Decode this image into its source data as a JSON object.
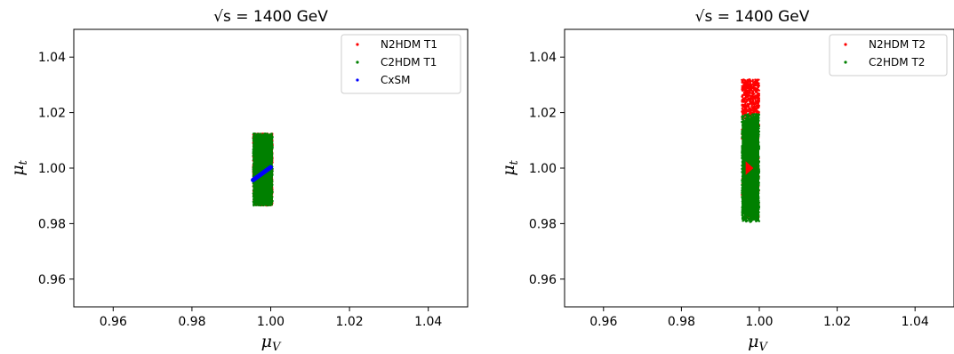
{
  "chart_data": [
    {
      "type": "scatter",
      "title": "√s = 1400 GeV",
      "xlabel": "μV",
      "ylabel": "μt",
      "xlim": [
        0.95,
        1.05
      ],
      "ylim": [
        0.95,
        1.05
      ],
      "xticks": [
        "0.96",
        "0.98",
        "1.00",
        "1.02",
        "1.04"
      ],
      "yticks": [
        "0.96",
        "0.98",
        "1.00",
        "1.02",
        "1.04"
      ],
      "xtick_values": [
        0.96,
        0.98,
        1.0,
        1.02,
        1.04
      ],
      "ytick_values": [
        0.96,
        0.98,
        1.0,
        1.02,
        1.04
      ],
      "grid": false,
      "legend_position": "top-right",
      "series": [
        {
          "name": "N2HDM T1",
          "color": "#ff0000",
          "region": {
            "shape": "band",
            "x_min": 0.9955,
            "x_max": 1.0005,
            "y_min": 0.9865,
            "y_max": 1.0125
          }
        },
        {
          "name": "C2HDM T1",
          "color": "#008000",
          "region": {
            "shape": "band",
            "x_min": 0.9955,
            "x_max": 1.0005,
            "y_min": 0.9865,
            "y_max": 1.0125
          }
        },
        {
          "name": "CxSM",
          "color": "#0000ff",
          "region": {
            "shape": "line",
            "x_start": 0.9955,
            "y_start": 0.9957,
            "x_end": 1.0,
            "y_end": 1.0003
          }
        }
      ]
    },
    {
      "type": "scatter",
      "title": "√s = 1400 GeV",
      "xlabel": "μV",
      "ylabel": "μt",
      "xlim": [
        0.95,
        1.05
      ],
      "ylim": [
        0.95,
        1.05
      ],
      "xticks": [
        "0.96",
        "0.98",
        "1.00",
        "1.02",
        "1.04"
      ],
      "yticks": [
        "0.96",
        "0.98",
        "1.00",
        "1.02",
        "1.04"
      ],
      "xtick_values": [
        0.96,
        0.98,
        1.0,
        1.02,
        1.04
      ],
      "ytick_values": [
        0.96,
        0.98,
        1.0,
        1.02,
        1.04
      ],
      "grid": false,
      "legend_position": "top-right",
      "series": [
        {
          "name": "N2HDM T2",
          "color": "#ff0000",
          "region": {
            "shape": "band",
            "x_min": 0.9955,
            "x_max": 1.0,
            "y_min": 0.9815,
            "y_max": 1.032
          }
        },
        {
          "name": "C2HDM T2",
          "color": "#008000",
          "region": {
            "shape": "band",
            "x_min": 0.9955,
            "x_max": 1.0,
            "y_min": 0.9805,
            "y_max": 1.0195
          }
        }
      ]
    }
  ]
}
